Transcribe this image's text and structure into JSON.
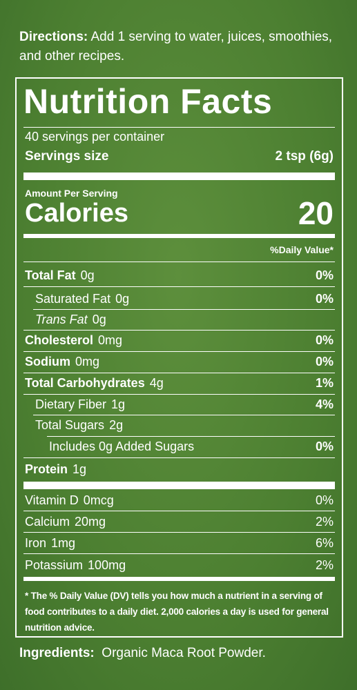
{
  "directions": {
    "label": "Directions:",
    "text": "Add 1 serving to water, juices, smoothies, and other recipes."
  },
  "panel": {
    "title": "Nutrition Facts",
    "servings_per_container": "40 servings per container",
    "serving_size_label": "Servings size",
    "serving_size": "2 tsp (6g)",
    "amount_per_serving": "Amount Per Serving",
    "calories_label": "Calories",
    "calories": "20",
    "dv_header": "%Daily Value*",
    "nutrients": [
      {
        "name": "Total Fat",
        "amount": "0g",
        "dv": "0%"
      },
      {
        "name": "Saturated Fat",
        "amount": "0g",
        "dv": "0%"
      },
      {
        "name": "Trans Fat",
        "amount": "0g"
      },
      {
        "name": "Cholesterol",
        "amount": "0mg",
        "dv": "0%"
      },
      {
        "name": "Sodium",
        "amount": "0mg",
        "dv": "0%"
      },
      {
        "name": "Total Carbohydrates",
        "amount": "4g",
        "dv": "1%"
      },
      {
        "name": "Dietary Fiber",
        "amount": "1g",
        "dv": "4%"
      },
      {
        "name": "Total Sugars",
        "amount": "2g"
      },
      {
        "name": "Includes 0g Added Sugars",
        "dv": "0%"
      },
      {
        "name": "Protein",
        "amount": "1g"
      }
    ],
    "vitamins": [
      {
        "name": "Vitamin D",
        "amount": "0mcg",
        "dv": "0%"
      },
      {
        "name": "Calcium",
        "amount": "20mg",
        "dv": "2%"
      },
      {
        "name": "Iron",
        "amount": "1mg",
        "dv": "6%"
      },
      {
        "name": "Potassium",
        "amount": "100mg",
        "dv": "2%"
      }
    ],
    "footnote": "* The % Daily Value (DV) tells you how much a nutrient in a serving of food contributes to a daily diet. 2,000 calories a day is used for general nutrition advice."
  },
  "ingredients": {
    "label": "Ingredients:",
    "text": "Organic Maca Root Powder."
  }
}
